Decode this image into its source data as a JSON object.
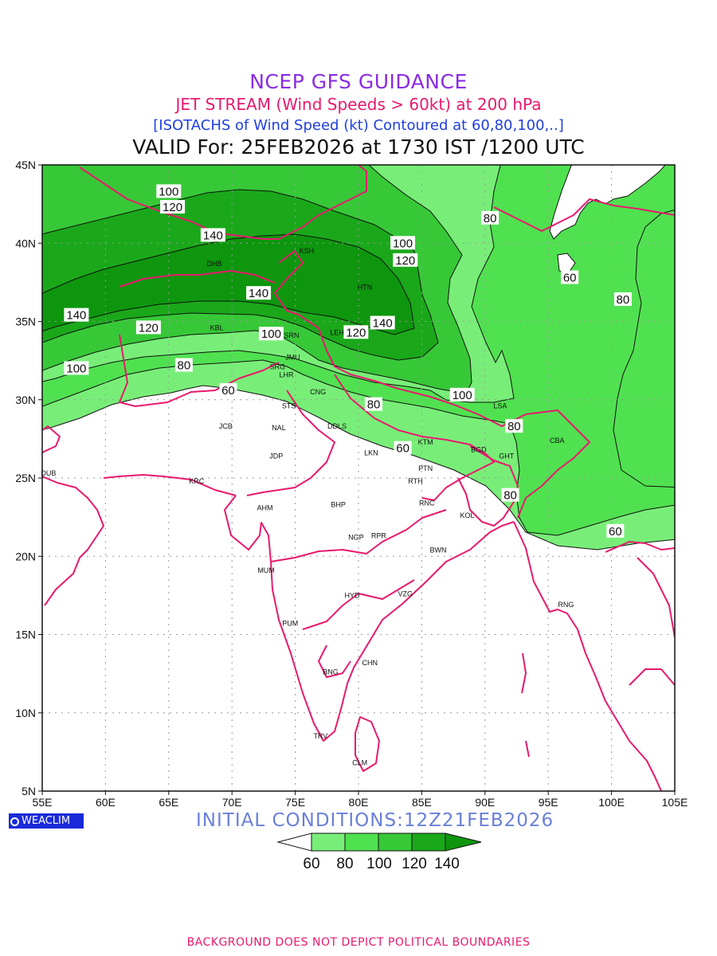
{
  "title": {
    "line1": "NCEP GFS GUIDANCE",
    "line2": "JET STREAM (Wind Speeds > 60kt) at 200 hPa",
    "line3": "[ISOTACHS of Wind Speed (kt) Contoured at 60,80,100,..]",
    "line4": "VALID For: 25FEB2026 at 1730 IST /1200 UTC"
  },
  "axes": {
    "lon_labels": [
      "55E",
      "60E",
      "65E",
      "70E",
      "75E",
      "80E",
      "85E",
      "90E",
      "95E",
      "100E",
      "105E"
    ],
    "lat_labels": [
      "45N",
      "40N",
      "35N",
      "30N",
      "25N",
      "20N",
      "15N",
      "10N",
      "5N"
    ]
  },
  "contour_labels": [
    {
      "text": "100",
      "lon": 65.0,
      "lat": 43.3
    },
    {
      "text": "120",
      "lon": 65.3,
      "lat": 42.3
    },
    {
      "text": "140",
      "lon": 68.5,
      "lat": 40.5
    },
    {
      "text": "100",
      "lon": 83.5,
      "lat": 40.0
    },
    {
      "text": "120",
      "lon": 83.7,
      "lat": 38.9
    },
    {
      "text": "80",
      "lon": 90.4,
      "lat": 41.6
    },
    {
      "text": "140",
      "lon": 57.7,
      "lat": 35.4
    },
    {
      "text": "120",
      "lon": 63.4,
      "lat": 34.6
    },
    {
      "text": "140",
      "lon": 72.1,
      "lat": 36.8
    },
    {
      "text": "100",
      "lon": 73.1,
      "lat": 34.2
    },
    {
      "text": "120",
      "lon": 79.8,
      "lat": 34.3
    },
    {
      "text": "140",
      "lon": 81.9,
      "lat": 34.9
    },
    {
      "text": "100",
      "lon": 57.7,
      "lat": 32.0
    },
    {
      "text": "80",
      "lon": 66.2,
      "lat": 32.2
    },
    {
      "text": "60",
      "lon": 69.7,
      "lat": 30.6
    },
    {
      "text": "80",
      "lon": 81.2,
      "lat": 29.7
    },
    {
      "text": "60",
      "lon": 83.5,
      "lat": 26.9
    },
    {
      "text": "100",
      "lon": 88.2,
      "lat": 30.3
    },
    {
      "text": "80",
      "lon": 92.3,
      "lat": 28.3
    },
    {
      "text": "60",
      "lon": 96.7,
      "lat": 37.8
    },
    {
      "text": "80",
      "lon": 100.9,
      "lat": 36.4
    },
    {
      "text": "80",
      "lon": 92.0,
      "lat": 23.9
    },
    {
      "text": "60",
      "lon": 100.3,
      "lat": 21.6
    }
  ],
  "stations": [
    {
      "code": "KSH",
      "lon": 75.9,
      "lat": 39.5
    },
    {
      "code": "DHB",
      "lon": 68.6,
      "lat": 38.7
    },
    {
      "code": "HTN",
      "lon": 80.5,
      "lat": 37.2
    },
    {
      "code": "KBL",
      "lon": 68.8,
      "lat": 34.6
    },
    {
      "code": "SRN",
      "lon": 74.7,
      "lat": 34.1
    },
    {
      "code": "LEH",
      "lon": 78.3,
      "lat": 34.3
    },
    {
      "code": "JMU",
      "lon": 74.8,
      "lat": 32.7
    },
    {
      "code": "SRG",
      "lon": 73.6,
      "lat": 32.1
    },
    {
      "code": "LHR",
      "lon": 74.3,
      "lat": 31.6
    },
    {
      "code": "CNG",
      "lon": 76.8,
      "lat": 30.5
    },
    {
      "code": "STS",
      "lon": 74.5,
      "lat": 29.6
    },
    {
      "code": "LSA",
      "lon": 91.2,
      "lat": 29.6
    },
    {
      "code": "DDLS",
      "lon": 78.3,
      "lat": 28.3
    },
    {
      "code": "JCB",
      "lon": 69.5,
      "lat": 28.3
    },
    {
      "code": "NAL",
      "lon": 73.7,
      "lat": 28.2
    },
    {
      "code": "KTM",
      "lon": 85.3,
      "lat": 27.3
    },
    {
      "code": "BGD",
      "lon": 89.5,
      "lat": 26.8
    },
    {
      "code": "CBA",
      "lon": 95.7,
      "lat": 27.4
    },
    {
      "code": "GHT",
      "lon": 91.7,
      "lat": 26.4
    },
    {
      "code": "LKN",
      "lon": 81.0,
      "lat": 26.6
    },
    {
      "code": "JDP",
      "lon": 73.5,
      "lat": 26.4
    },
    {
      "code": "PTN",
      "lon": 85.3,
      "lat": 25.6
    },
    {
      "code": "DUB",
      "lon": 55.5,
      "lat": 25.3
    },
    {
      "code": "KRC",
      "lon": 67.2,
      "lat": 24.8
    },
    {
      "code": "RTH",
      "lon": 84.5,
      "lat": 24.8
    },
    {
      "code": "BHP",
      "lon": 78.4,
      "lat": 23.3
    },
    {
      "code": "AHM",
      "lon": 72.6,
      "lat": 23.1
    },
    {
      "code": "RNC",
      "lon": 85.4,
      "lat": 23.4
    },
    {
      "code": "KOL",
      "lon": 88.6,
      "lat": 22.6
    },
    {
      "code": "NGP",
      "lon": 79.8,
      "lat": 21.2
    },
    {
      "code": "RPR",
      "lon": 81.6,
      "lat": 21.3
    },
    {
      "code": "BWN",
      "lon": 86.3,
      "lat": 20.4
    },
    {
      "code": "MUM",
      "lon": 72.7,
      "lat": 19.1
    },
    {
      "code": "VZG",
      "lon": 83.7,
      "lat": 17.6
    },
    {
      "code": "HYD",
      "lon": 79.5,
      "lat": 17.5
    },
    {
      "code": "RNG",
      "lon": 96.4,
      "lat": 16.9
    },
    {
      "code": "PUM",
      "lon": 74.6,
      "lat": 15.7
    },
    {
      "code": "CHN",
      "lon": 80.9,
      "lat": 13.2
    },
    {
      "code": "BNG",
      "lon": 77.8,
      "lat": 12.6
    },
    {
      "code": "TRV",
      "lon": 77.0,
      "lat": 8.5
    },
    {
      "code": "CLM",
      "lon": 80.1,
      "lat": 6.8
    }
  ],
  "footer": {
    "logo_text": "WEACLIM",
    "initial_conditions": "INITIAL  CONDITIONS:12Z21FEB2026",
    "disclaimer": "BACKGROUND DOES NOT DEPICT POLITICAL BOUNDARIES"
  },
  "legend": {
    "labels": [
      "60",
      "80",
      "100",
      "120",
      "140"
    ],
    "colors": [
      "#ffffff",
      "#78ee78",
      "#50e150",
      "#37c837",
      "#1aa81a"
    ]
  },
  "colors": {
    "band_60": "#78ee78",
    "band_80": "#50e150",
    "band_100": "#37c837",
    "band_120": "#1aa81a",
    "band_140": "#0e960e",
    "boundary": "#e8196e"
  }
}
